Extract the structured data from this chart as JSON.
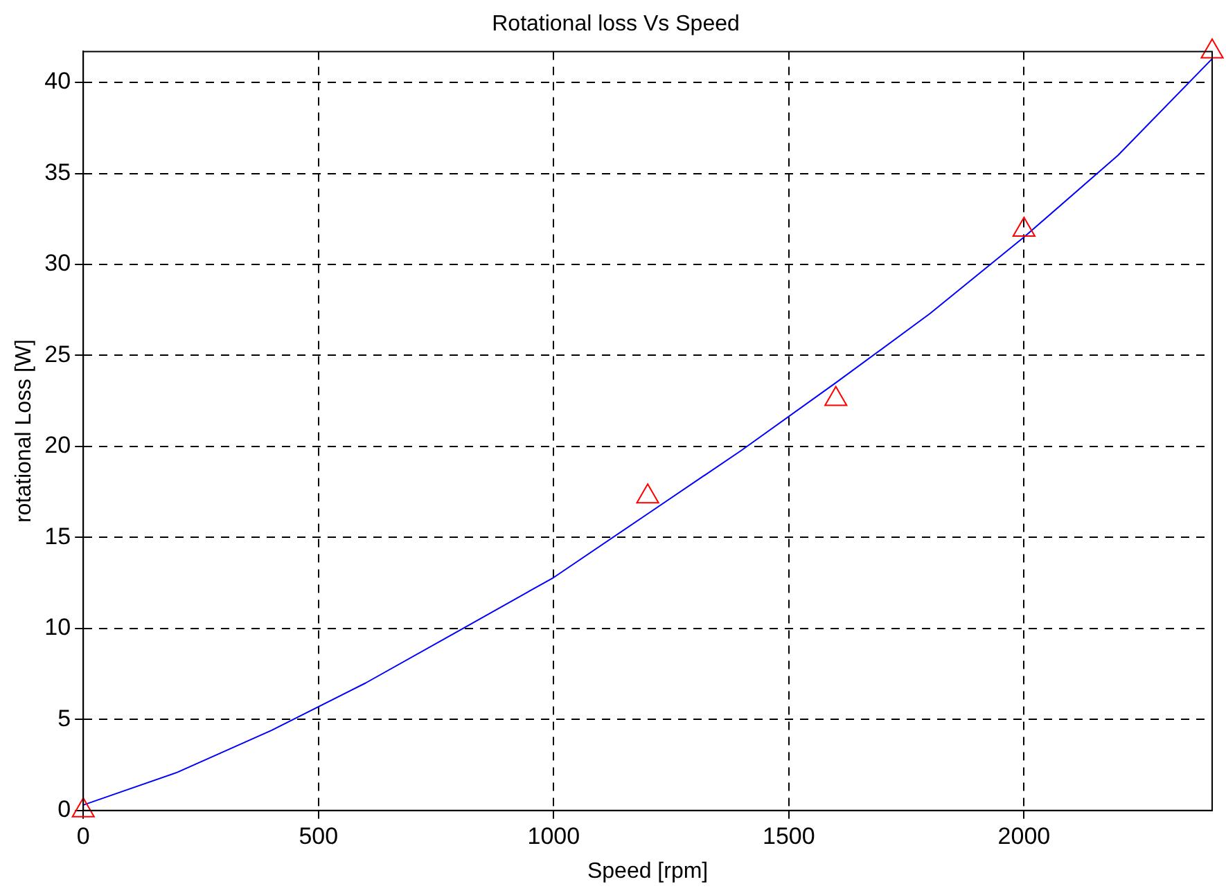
{
  "chart_data": {
    "type": "line",
    "title": "Rotational loss Vs Speed",
    "xlabel": "Speed [rpm]",
    "ylabel": "rotational Loss [W]",
    "xlim": [
      0,
      2400
    ],
    "xticks": [
      0,
      500,
      1000,
      1500,
      2000
    ],
    "ylim": [
      0,
      41.7
    ],
    "yticks": [
      0,
      5,
      10,
      15,
      20,
      25,
      30,
      35,
      40
    ],
    "grid": true,
    "legend": false,
    "series": [
      {
        "color": "#0000ff",
        "marker": "none",
        "line_style": "solid",
        "x": [
          0,
          200,
          400,
          600,
          800,
          1000,
          1200,
          1400,
          1600,
          1800,
          2000,
          2200,
          2400
        ],
        "values": [
          0.3,
          2.1,
          4.4,
          7.0,
          9.9,
          12.8,
          16.3,
          19.8,
          23.5,
          27.3,
          31.5,
          36.0,
          41.3
        ]
      },
      {
        "type": "scatter",
        "color": "#ff0000",
        "marker": "triangle",
        "x": [
          0,
          1200,
          1600,
          2000,
          2400
        ],
        "values": [
          0,
          17.25,
          22.6,
          31.9,
          41.7
        ]
      }
    ]
  }
}
